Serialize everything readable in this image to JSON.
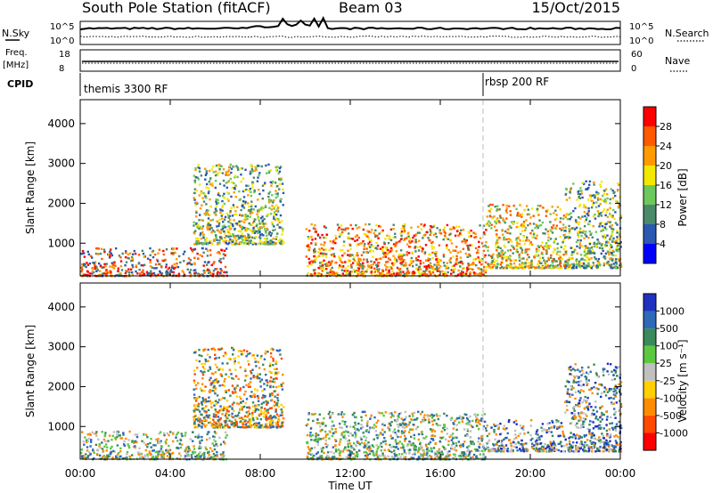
{
  "header": {
    "title": "South Pole Station (fitACF)",
    "beam": "Beam 03",
    "date": "15/Oct/2015"
  },
  "top_panels": {
    "nsky_label": "N.Sky",
    "nsearch_label": "N.Search",
    "nsky_ticks": [
      "10^5",
      "10^0"
    ],
    "nsearch_ticks": [
      "10^5",
      "10^0"
    ],
    "freq_label_1": "Freq.",
    "freq_label_2": "[MHz]",
    "freq_ticks": [
      "18",
      "8"
    ],
    "nave_label": "Nave",
    "nave_ticks": [
      "60",
      "0"
    ],
    "cpid_label": "CPID",
    "cpid_segments": [
      {
        "label": "themis 3300 RF",
        "start_hour": 0
      },
      {
        "label": "rbsp 200 RF",
        "start_hour": 18
      }
    ]
  },
  "chart_data": [
    {
      "type": "heatmap",
      "panel": "power",
      "ylabel": "Slant Range [km]",
      "y_ticks": [
        1000,
        2000,
        3000,
        4000
      ],
      "ylim": [
        180,
        4600
      ],
      "xlim": [
        0,
        24
      ],
      "colorbar_label": "Power [dB]",
      "colorbar_ticks": [
        "4",
        "8",
        "12",
        "16",
        "20",
        "24",
        "28"
      ],
      "colorbar_colors": [
        "#0000ff",
        "#2b58b0",
        "#4a8a6a",
        "#6dc95c",
        "#f5e800",
        "#ff9b00",
        "#ff5a00",
        "#ff0000"
      ],
      "scatter_regions": [
        {
          "hours": [
            0.0,
            6.5
          ],
          "range_km": [
            200,
            900
          ],
          "level": "low-mid"
        },
        {
          "hours": [
            5.0,
            9.0
          ],
          "range_km": [
            1000,
            3000
          ],
          "level": "mid"
        },
        {
          "hours": [
            10.0,
            18.0
          ],
          "range_km": [
            200,
            1500
          ],
          "level": "high"
        },
        {
          "hours": [
            18.0,
            21.5
          ],
          "range_km": [
            400,
            2000
          ],
          "level": "mid-high"
        },
        {
          "hours": [
            21.5,
            24.0
          ],
          "range_km": [
            400,
            2600
          ],
          "level": "mid"
        }
      ]
    },
    {
      "type": "heatmap",
      "panel": "velocity",
      "xlabel": "Time UT",
      "ylabel": "Slant Range [km]",
      "y_ticks": [
        1000,
        2000,
        3000,
        4000
      ],
      "ylim": [
        180,
        4600
      ],
      "xlim": [
        0,
        24
      ],
      "x_ticks": [
        "00:00",
        "04:00",
        "08:00",
        "12:00",
        "16:00",
        "20:00",
        "00:00"
      ],
      "x_tick_hours": [
        0,
        4,
        8,
        12,
        16,
        20,
        24
      ],
      "colorbar_label": "Velocity [m s⁻¹]",
      "colorbar_ticks": [
        "1000",
        "500",
        "100",
        "25",
        "-25",
        "-100",
        "-500",
        "-1000"
      ],
      "colorbar_colors": [
        "#2030c0",
        "#2e6ab8",
        "#3a8a5a",
        "#5cc842",
        "#c0c0c0",
        "#ffd000",
        "#ff8c00",
        "#ff4a00",
        "#ff0000"
      ],
      "scatter_regions": [
        {
          "hours": [
            0.0,
            6.5
          ],
          "range_km": [
            200,
            900
          ],
          "level": "mixed"
        },
        {
          "hours": [
            5.0,
            9.0
          ],
          "range_km": [
            1000,
            3000
          ],
          "level": "negative"
        },
        {
          "hours": [
            10.0,
            18.0
          ],
          "range_km": [
            200,
            1400
          ],
          "level": "mixed"
        },
        {
          "hours": [
            18.0,
            21.5
          ],
          "range_km": [
            400,
            1200
          ],
          "level": "positive"
        },
        {
          "hours": [
            21.5,
            24.0
          ],
          "range_km": [
            400,
            2600
          ],
          "level": "positive"
        }
      ]
    }
  ]
}
